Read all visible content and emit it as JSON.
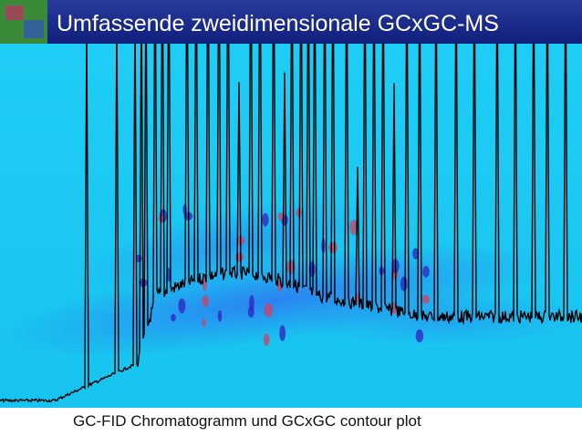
{
  "header": {
    "title": "Umfassende zweidimensionale GCxGC-MS"
  },
  "caption": "GC-FID Chromatogramm und GCxGC contour plot"
}
